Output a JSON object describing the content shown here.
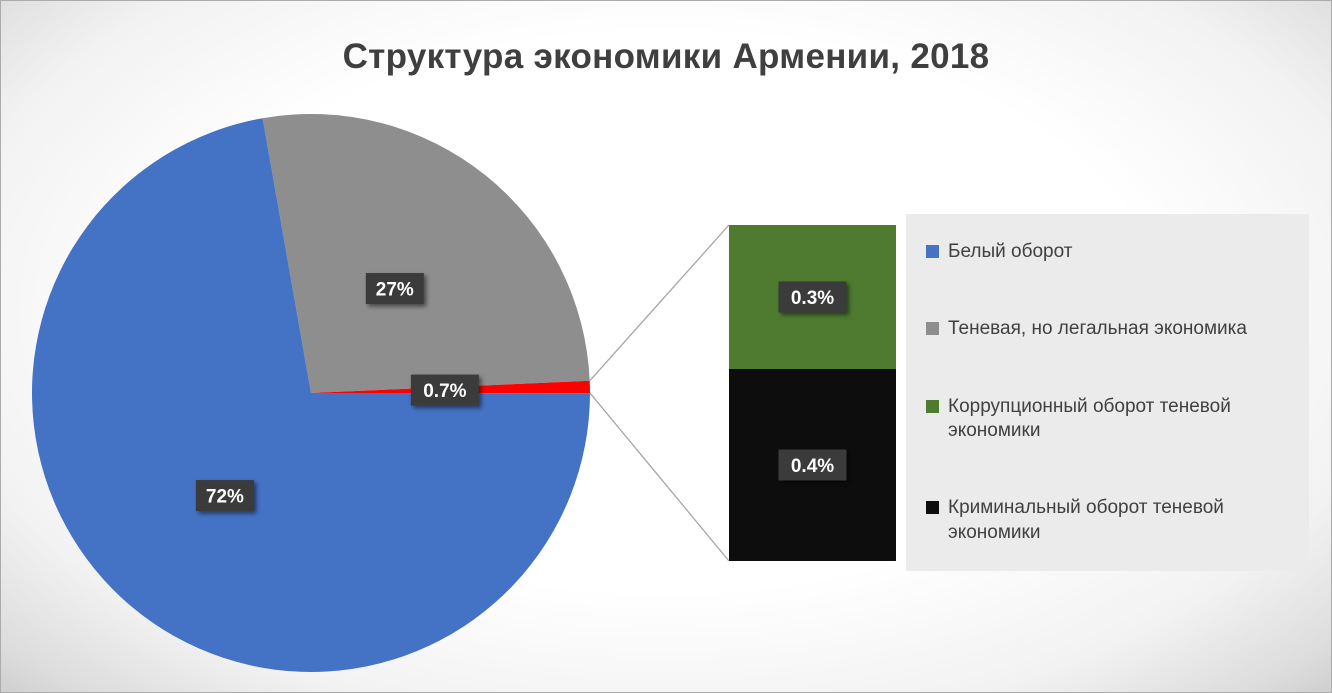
{
  "chart_data": {
    "type": "pie",
    "subtype": "bar-of-pie",
    "title": "Структура экономики Армении, 2018",
    "pie": {
      "direction": "clockwise",
      "slices": [
        {
          "name": "Теневая, но легальная экономика",
          "value_pct": 27,
          "label": "27%",
          "color": "#8E8E8E"
        },
        {
          "value_pct": 0.7,
          "label": "0.7%",
          "color": "#FF0000",
          "breakout": true
        },
        {
          "name": "Белый оборот",
          "value_pct": 72,
          "label": "72%",
          "color": "#4472C4"
        }
      ]
    },
    "breakout_bar": {
      "segments": [
        {
          "name": "Коррупционный оборот теневой экономики",
          "value_pct": 0.3,
          "label": "0.3%",
          "color": "#4E7B30"
        },
        {
          "name": "Криминальный оборот теневой экономики",
          "value_pct": 0.4,
          "label": "0.4%",
          "color": "#0D0D0D"
        }
      ]
    },
    "legend": {
      "position": "right",
      "bg": "#EBEBEB",
      "items": [
        {
          "label": "Белый оборот",
          "color": "#4472C4"
        },
        {
          "label": "Теневая, но легальная экономика",
          "color": "#8E8E8E"
        },
        {
          "label": "Коррупционный оборот теневой экономики",
          "color": "#4E7B30"
        },
        {
          "label": "Криминальный оборот теневой экономики",
          "color": "#0D0D0D"
        }
      ]
    },
    "style": {
      "label_bg": "#3A3A3A",
      "label_text": "#FFFFFF",
      "connector_color": "#A6A6A6",
      "title_color": "#3F3F3F",
      "legend_text_color": "#404040"
    }
  }
}
